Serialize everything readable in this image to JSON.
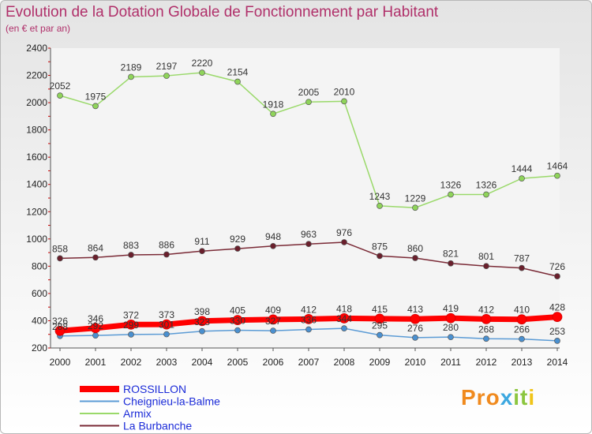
{
  "title": "Evolution de la Dotation Globale de Fonctionnement par Habitant",
  "subtitle": "(en € et par an)",
  "logo": {
    "text": "Proxiti",
    "parts": [
      "Pro",
      "x",
      "it",
      "i"
    ]
  },
  "chart_data": {
    "type": "line",
    "title": "Evolution de la Dotation Globale de Fonctionnement par Habitant",
    "ylabel": "(en € et par an)",
    "xlabel": "",
    "ylim": [
      200,
      2400
    ],
    "yticks": [
      200,
      400,
      600,
      800,
      1000,
      1200,
      1400,
      1600,
      1800,
      2000,
      2200,
      2400
    ],
    "categories": [
      "2000",
      "2001",
      "2002",
      "2003",
      "2004",
      "2005",
      "2006",
      "2007",
      "2008",
      "2009",
      "2010",
      "2011",
      "2012",
      "2013",
      "2014"
    ],
    "series": [
      {
        "name": "Cheignieu-la-Balme",
        "color": "#5b9bd5",
        "dot": "#4a90d0",
        "stroke": 1.5,
        "labelled": true,
        "values": [
          288,
          292,
          299,
          301,
          323,
          330,
          327,
          336,
          344,
          295,
          276,
          280,
          268,
          266,
          253
        ]
      },
      {
        "name": "Armix",
        "color": "#9ad96a",
        "dot": "#8fd45a",
        "stroke": 1.5,
        "labelled": true,
        "values": [
          2052,
          1975,
          2189,
          2197,
          2220,
          2154,
          1918,
          2005,
          2010,
          1243,
          1229,
          1326,
          1326,
          1444,
          1464
        ]
      },
      {
        "name": "La Burbanche",
        "color": "#7a2a36",
        "dot": "#6a1f2c",
        "stroke": 1.5,
        "labelled": true,
        "values": [
          858,
          864,
          883,
          886,
          911,
          929,
          948,
          963,
          976,
          875,
          860,
          821,
          801,
          787,
          726
        ]
      },
      {
        "name": "ROSSILLON",
        "color": "#ff0000",
        "dot": "#ff0000",
        "stroke": 7,
        "labelled": true,
        "values": [
          326,
          346,
          372,
          373,
          398,
          405,
          409,
          412,
          418,
          415,
          413,
          419,
          412,
          410,
          428
        ]
      }
    ],
    "legend": {
      "position": "bottom-left",
      "order": [
        "ROSSILLON",
        "Cheignieu-la-Balme",
        "Armix",
        "La Burbanche"
      ]
    }
  }
}
